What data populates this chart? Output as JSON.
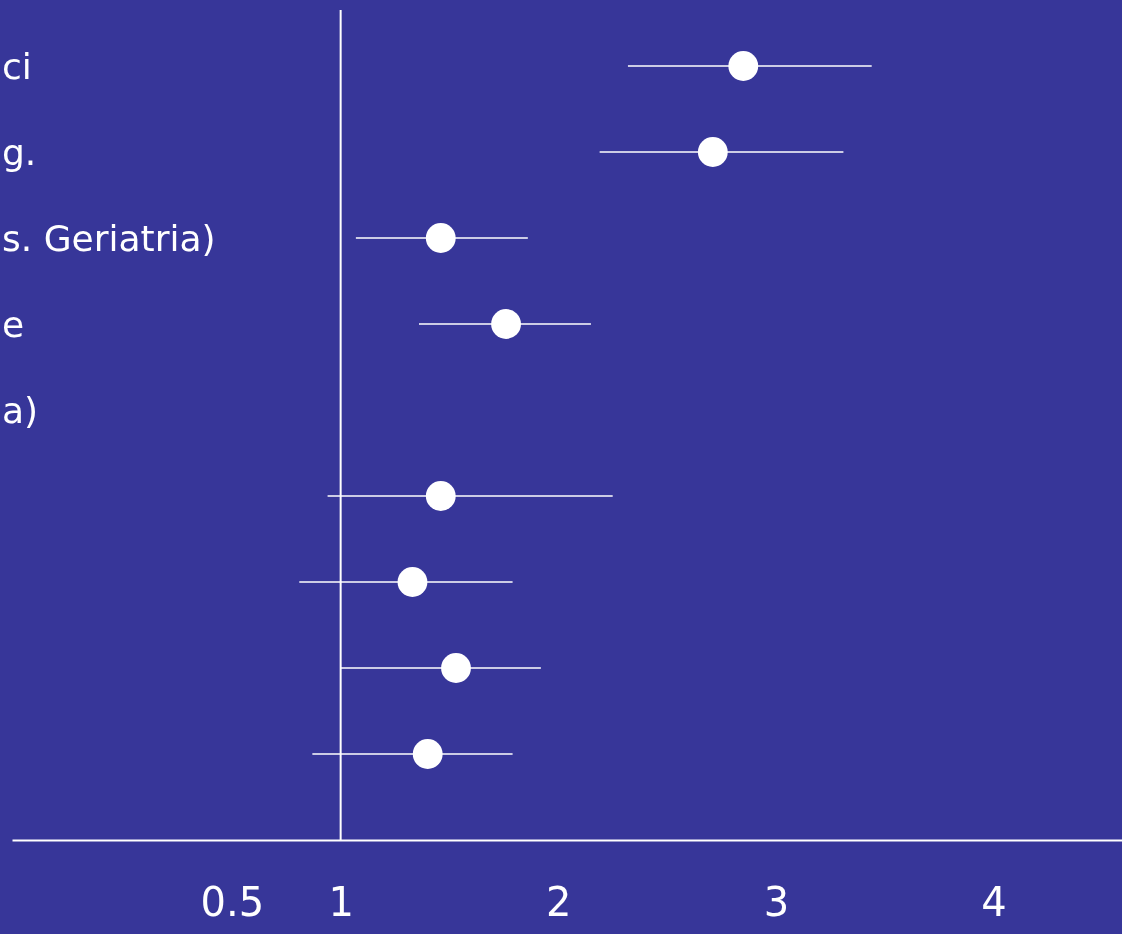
{
  "chart_data": {
    "type": "scatter",
    "orientation": "horizontal",
    "categories": [
      "ci",
      "g.",
      "s. Geriatria)",
      "e",
      "a)",
      null,
      null,
      null,
      null
    ],
    "values": [
      2.85,
      2.71,
      1.46,
      1.76,
      null,
      1.46,
      1.33,
      1.53,
      1.4
    ],
    "errors": [
      [
        2.32,
        3.44
      ],
      [
        2.19,
        3.31
      ],
      [
        1.07,
        1.86
      ],
      [
        1.36,
        2.15
      ],
      null,
      [
        0.94,
        2.25
      ],
      [
        0.81,
        1.79
      ],
      [
        1.0,
        1.92
      ],
      [
        0.87,
        1.79
      ]
    ],
    "color": "#ffffff",
    "marker": "circle",
    "grid": false,
    "xlim": [
      -0.51,
      4.59
    ],
    "xticks": [
      0.5,
      1,
      2,
      3,
      4
    ],
    "ref_lines": [
      {
        "axis": "x",
        "value": 1,
        "color": "#ffffff"
      }
    ]
  }
}
